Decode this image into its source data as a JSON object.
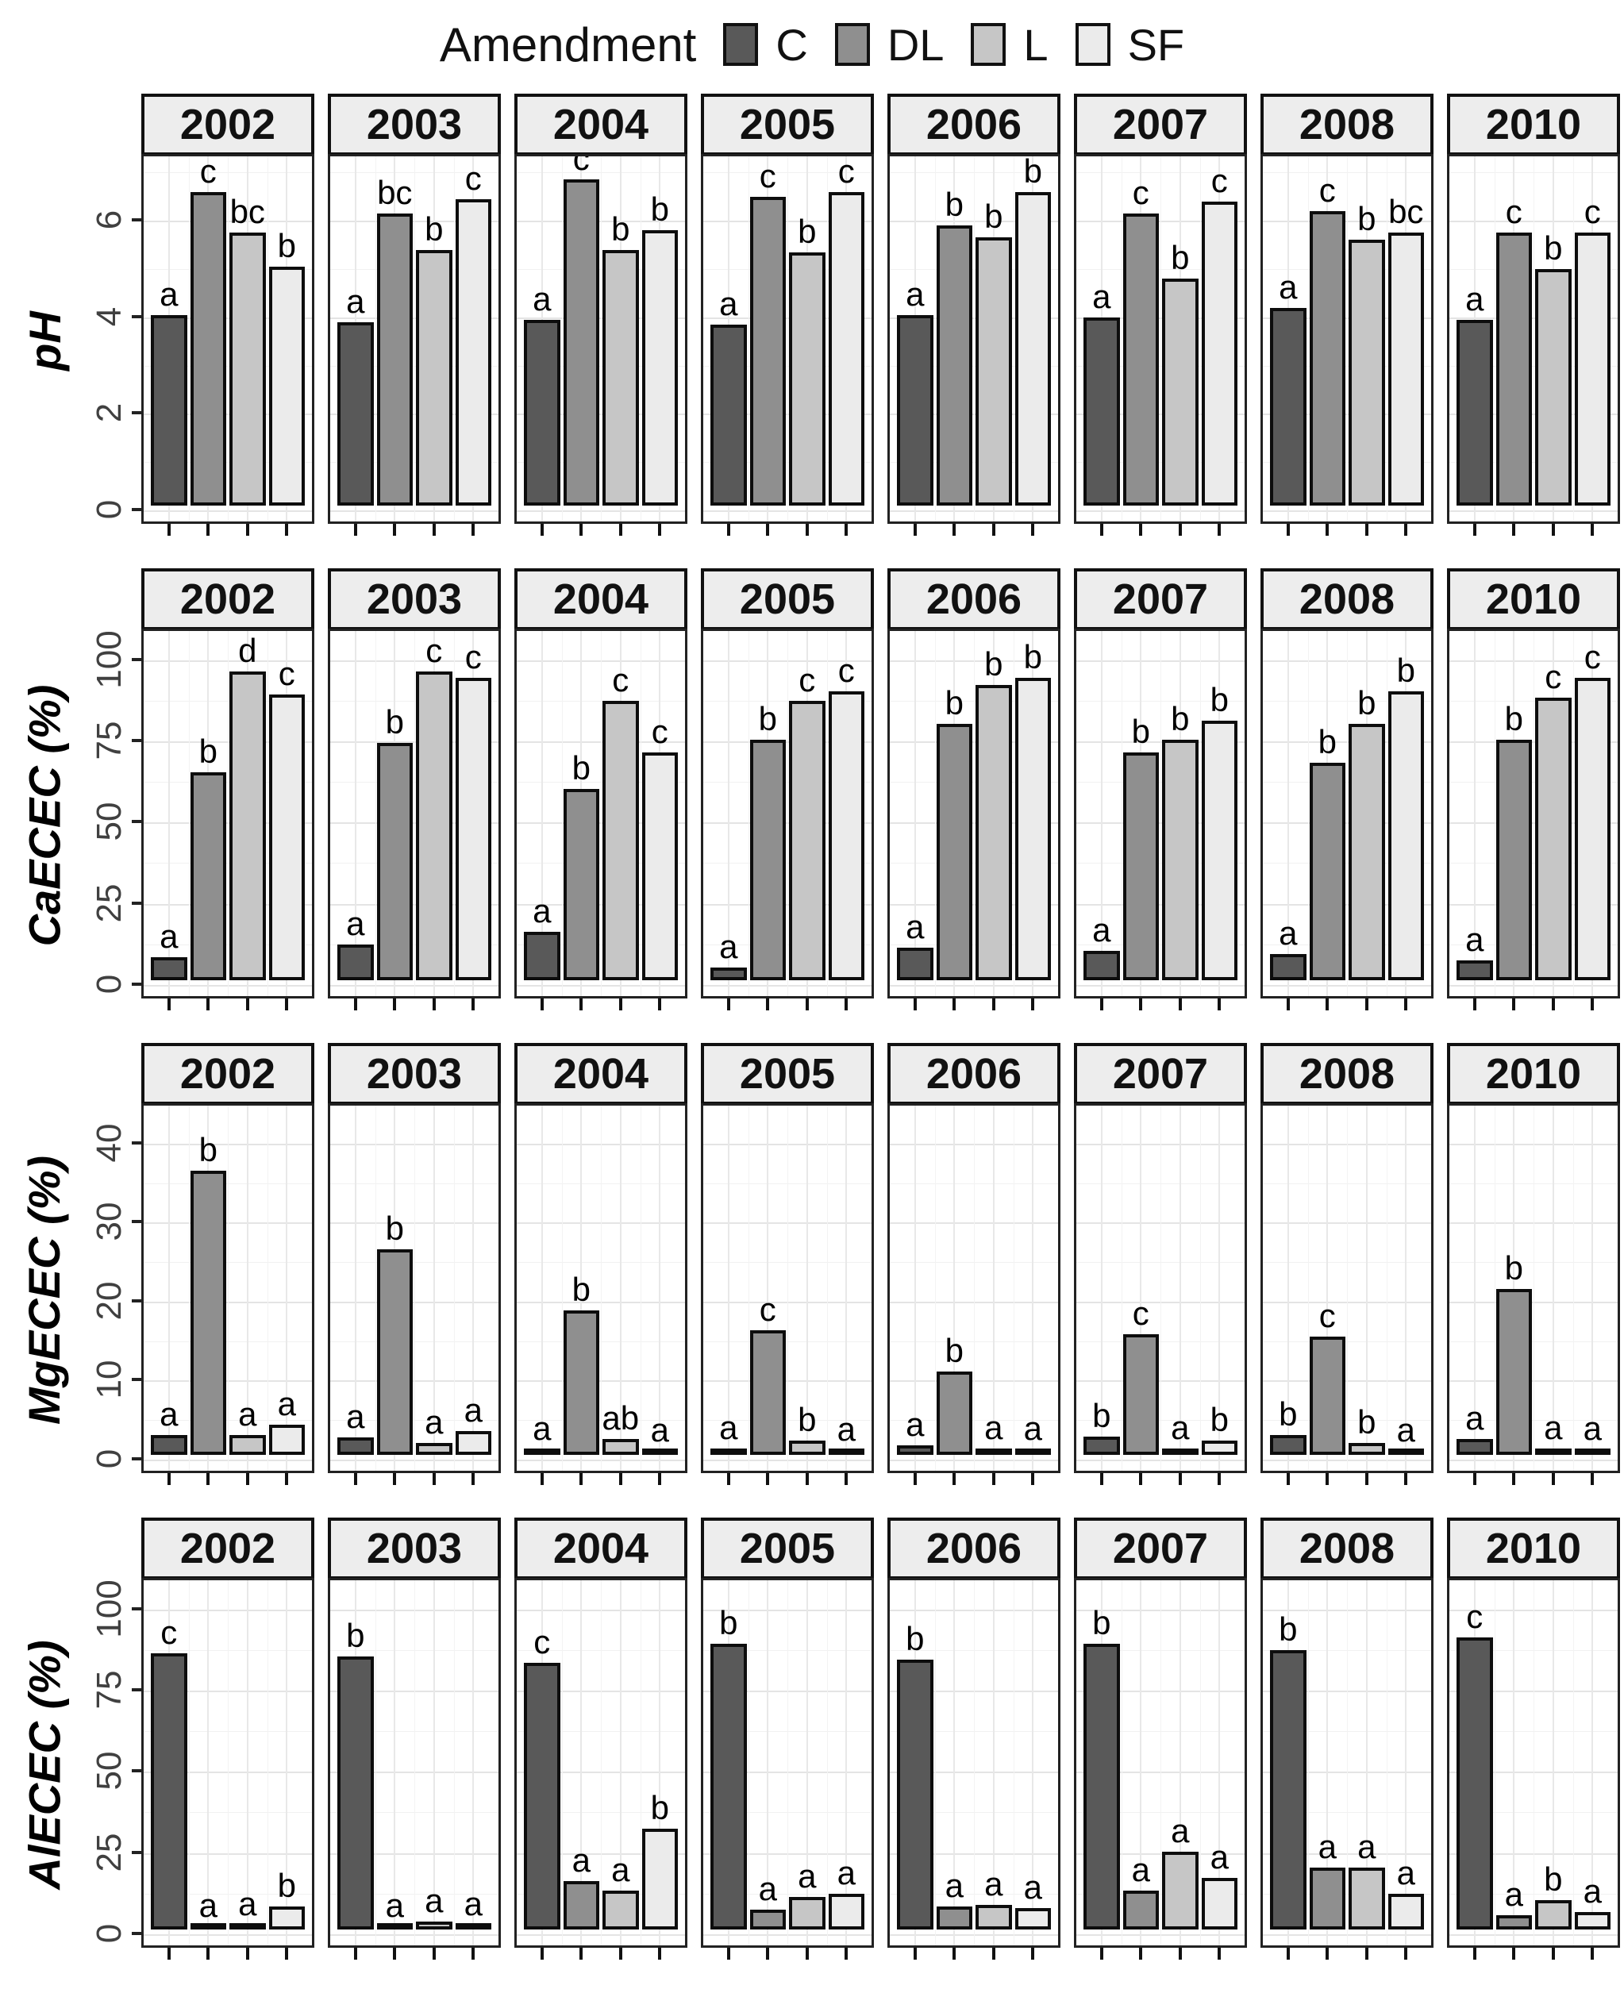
{
  "legend": {
    "title": "Amendment",
    "items": [
      {
        "label": "C",
        "color": "#595959"
      },
      {
        "label": "DL",
        "color": "#8f8f8f"
      },
      {
        "label": "L",
        "color": "#c6c6c6"
      },
      {
        "label": "SF",
        "color": "#ebebeb"
      }
    ]
  },
  "years": [
    "2002",
    "2003",
    "2004",
    "2005",
    "2006",
    "2007",
    "2008",
    "2010"
  ],
  "chart_data": [
    {
      "type": "bar",
      "ylabel": "pH",
      "yticks": [
        0,
        2,
        4,
        6
      ],
      "ymax": 7.2,
      "categories": [
        "C",
        "DL",
        "L",
        "SF"
      ],
      "legend_position": "top",
      "grid": "major+minor",
      "panels": [
        {
          "year": "2002",
          "values": [
            3.95,
            6.5,
            5.65,
            4.95
          ],
          "letters": [
            "a",
            "c",
            "bc",
            "b"
          ]
        },
        {
          "year": "2003",
          "values": [
            3.8,
            6.05,
            5.3,
            6.35
          ],
          "letters": [
            "a",
            "bc",
            "b",
            "c"
          ]
        },
        {
          "year": "2004",
          "values": [
            3.85,
            6.75,
            5.3,
            5.7
          ],
          "letters": [
            "a",
            "c",
            "b",
            "b"
          ]
        },
        {
          "year": "2005",
          "values": [
            3.75,
            6.4,
            5.25,
            6.5
          ],
          "letters": [
            "a",
            "c",
            "b",
            "c"
          ]
        },
        {
          "year": "2006",
          "values": [
            3.95,
            5.8,
            5.55,
            6.5
          ],
          "letters": [
            "a",
            "b",
            "b",
            "b"
          ]
        },
        {
          "year": "2007",
          "values": [
            3.9,
            6.05,
            4.7,
            6.3
          ],
          "letters": [
            "a",
            "c",
            "b",
            "c"
          ]
        },
        {
          "year": "2008",
          "values": [
            4.1,
            6.1,
            5.5,
            5.65
          ],
          "letters": [
            "a",
            "c",
            "b",
            "bc"
          ]
        },
        {
          "year": "2010",
          "values": [
            3.85,
            5.65,
            4.9,
            5.65
          ],
          "letters": [
            "a",
            "c",
            "b",
            "c"
          ]
        }
      ]
    },
    {
      "type": "bar",
      "ylabel": "CaECEC (%)",
      "yticks": [
        0,
        25,
        50,
        75,
        100
      ],
      "ymax": 107,
      "categories": [
        "C",
        "DL",
        "L",
        "SF"
      ],
      "panels": [
        {
          "year": "2002",
          "values": [
            7,
            64,
            95,
            88
          ],
          "letters": [
            "a",
            "b",
            "d",
            "c"
          ]
        },
        {
          "year": "2003",
          "values": [
            11,
            73,
            95,
            93
          ],
          "letters": [
            "a",
            "b",
            "c",
            "c"
          ]
        },
        {
          "year": "2004",
          "values": [
            15,
            59,
            86,
            70
          ],
          "letters": [
            "a",
            "b",
            "c",
            "c"
          ]
        },
        {
          "year": "2005",
          "values": [
            4,
            74,
            86,
            89
          ],
          "letters": [
            "a",
            "b",
            "c",
            "c"
          ]
        },
        {
          "year": "2006",
          "values": [
            10,
            79,
            91,
            93
          ],
          "letters": [
            "a",
            "b",
            "b",
            "b"
          ]
        },
        {
          "year": "2007",
          "values": [
            9,
            70,
            74,
            80
          ],
          "letters": [
            "a",
            "b",
            "b",
            "b"
          ]
        },
        {
          "year": "2008",
          "values": [
            8,
            67,
            79,
            89
          ],
          "letters": [
            "a",
            "b",
            "b",
            "b"
          ]
        },
        {
          "year": "2010",
          "values": [
            6,
            74,
            87,
            93
          ],
          "letters": [
            "a",
            "b",
            "c",
            "c"
          ]
        }
      ]
    },
    {
      "type": "bar",
      "ylabel": "MgECEC (%)",
      "yticks": [
        0,
        10,
        20,
        30,
        40
      ],
      "ymax": 44,
      "categories": [
        "C",
        "DL",
        "L",
        "SF"
      ],
      "panels": [
        {
          "year": "2002",
          "values": [
            2.5,
            36,
            2.5,
            3.8
          ],
          "letters": [
            "a",
            "b",
            "a",
            "a"
          ]
        },
        {
          "year": "2003",
          "values": [
            2.2,
            26,
            1.5,
            3.0
          ],
          "letters": [
            "a",
            "b",
            "a",
            "a"
          ]
        },
        {
          "year": "2004",
          "values": [
            0.7,
            18.3,
            2.0,
            0.5
          ],
          "letters": [
            "a",
            "b",
            "ab",
            "a"
          ]
        },
        {
          "year": "2005",
          "values": [
            0.8,
            15.8,
            1.8,
            0.6
          ],
          "letters": [
            "a",
            "c",
            "b",
            "a"
          ]
        },
        {
          "year": "2006",
          "values": [
            1.2,
            10.5,
            0.8,
            0.7
          ],
          "letters": [
            "a",
            "b",
            "a",
            "a"
          ]
        },
        {
          "year": "2007",
          "values": [
            2.3,
            15.3,
            0.8,
            1.8
          ],
          "letters": [
            "b",
            "c",
            "a",
            "b"
          ]
        },
        {
          "year": "2008",
          "values": [
            2.5,
            15.0,
            1.5,
            0.5
          ],
          "letters": [
            "b",
            "c",
            "b",
            "a"
          ]
        },
        {
          "year": "2010",
          "values": [
            2.0,
            21.0,
            0.8,
            0.7
          ],
          "letters": [
            "a",
            "b",
            "a",
            "a"
          ]
        }
      ]
    },
    {
      "type": "bar",
      "ylabel": "AlECEC (%)",
      "yticks": [
        0,
        25,
        50,
        75,
        100
      ],
      "ymax": 107,
      "categories": [
        "C",
        "DL",
        "L",
        "SF"
      ],
      "panels": [
        {
          "year": "2002",
          "values": [
            85,
            0.5,
            1.5,
            7
          ],
          "letters": [
            "c",
            "a",
            "a",
            "b"
          ]
        },
        {
          "year": "2003",
          "values": [
            84,
            0.5,
            2.5,
            1.5
          ],
          "letters": [
            "b",
            "a",
            "a",
            "a"
          ]
        },
        {
          "year": "2004",
          "values": [
            82,
            15,
            12,
            31
          ],
          "letters": [
            "c",
            "a",
            "a",
            "b"
          ]
        },
        {
          "year": "2005",
          "values": [
            88,
            6,
            10,
            11
          ],
          "letters": [
            "b",
            "a",
            "a",
            "a"
          ]
        },
        {
          "year": "2006",
          "values": [
            83,
            7,
            7.5,
            6.5
          ],
          "letters": [
            "b",
            "a",
            "a",
            "a"
          ]
        },
        {
          "year": "2007",
          "values": [
            88,
            12,
            24,
            16
          ],
          "letters": [
            "b",
            "a",
            "a",
            "a"
          ]
        },
        {
          "year": "2008",
          "values": [
            86,
            19,
            19,
            11
          ],
          "letters": [
            "b",
            "a",
            "a",
            "a"
          ]
        },
        {
          "year": "2010",
          "values": [
            90,
            4.5,
            9,
            5.5
          ],
          "letters": [
            "c",
            "a",
            "b",
            "a"
          ]
        }
      ]
    }
  ]
}
